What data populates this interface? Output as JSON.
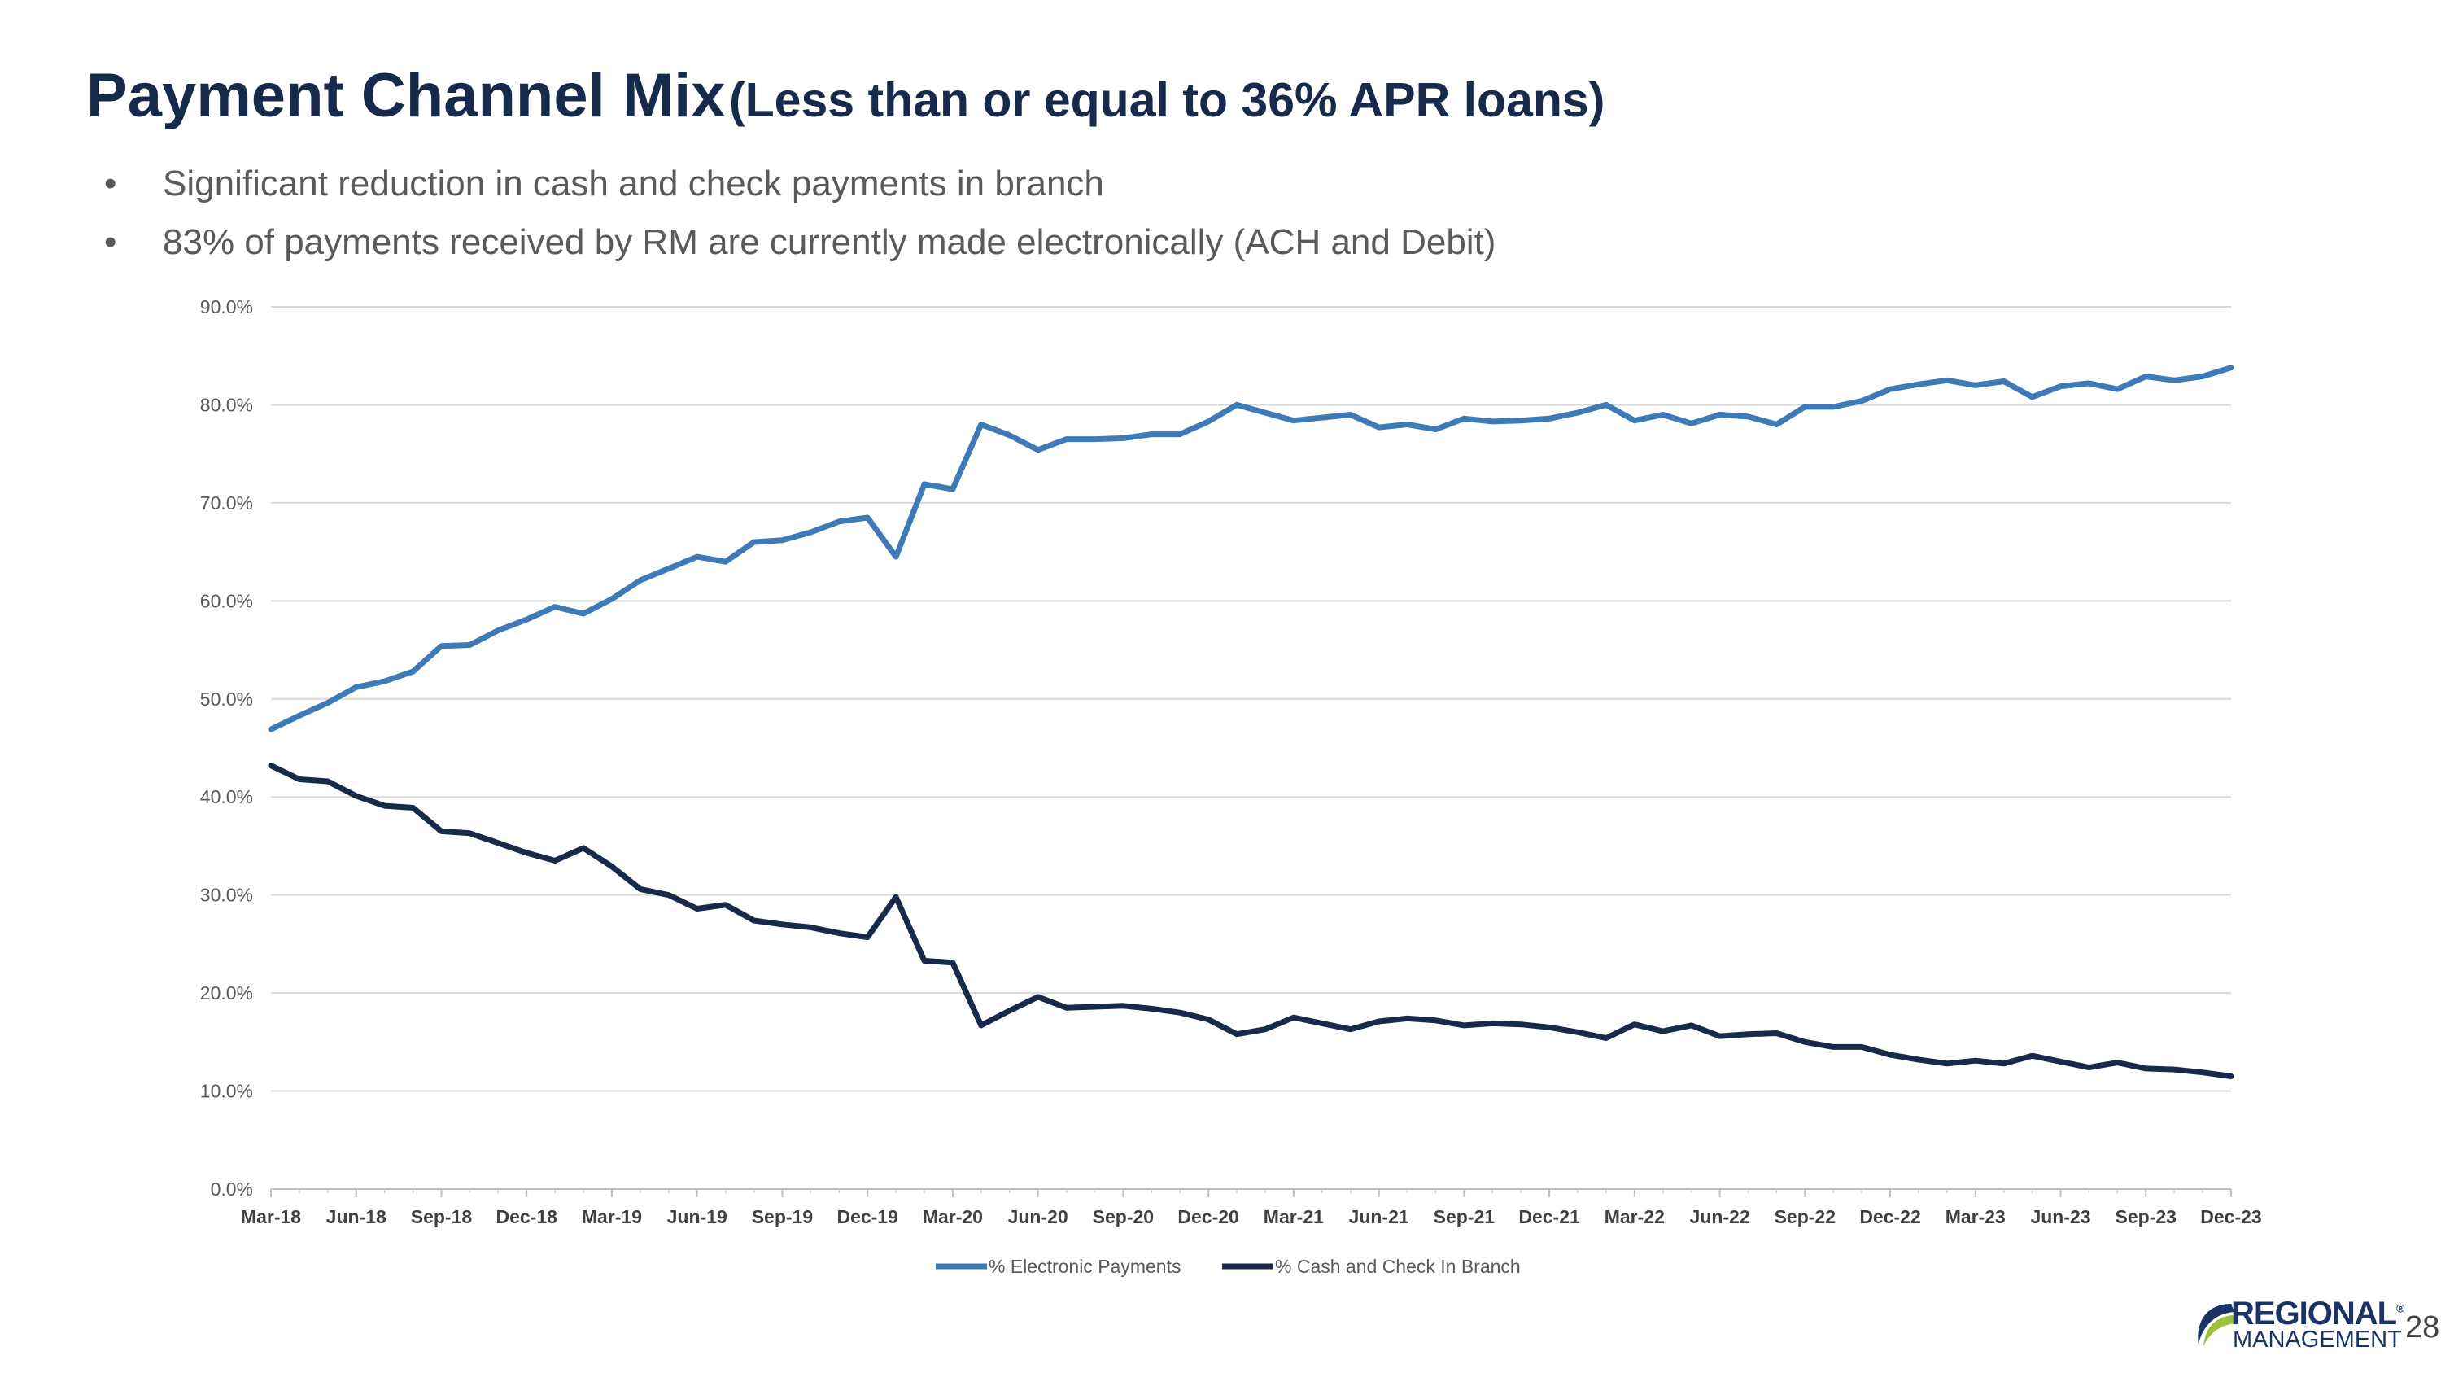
{
  "slide": {
    "title_main": "Payment Channel Mix",
    "title_sub": "(Less than or equal to 36% APR loans)",
    "bullets": [
      "Significant reduction in cash and check payments in branch",
      "83% of payments received by RM are currently made electronically (ACH and Debit)"
    ],
    "page_number": "28",
    "logo": {
      "line1": "REGIONAL",
      "reg_mark": "®",
      "line2": "MANAGEMENT"
    }
  },
  "chart_data": {
    "type": "line",
    "title": "",
    "xlabel": "",
    "ylabel": "",
    "ylim": [
      0,
      90
    ],
    "y_ticks": [
      "0.0%",
      "10.0%",
      "20.0%",
      "30.0%",
      "40.0%",
      "50.0%",
      "60.0%",
      "70.0%",
      "80.0%",
      "90.0%"
    ],
    "x_tick_labels": [
      "Mar-18",
      "Jun-18",
      "Sep-18",
      "Dec-18",
      "Mar-19",
      "Jun-19",
      "Sep-19",
      "Dec-19",
      "Mar-20",
      "Jun-20",
      "Sep-20",
      "Dec-20",
      "Mar-21",
      "Jun-21",
      "Sep-21",
      "Dec-21",
      "Mar-22",
      "Jun-22",
      "Sep-22",
      "Dec-22",
      "Mar-23",
      "Jun-23",
      "Sep-23",
      "Dec-23"
    ],
    "grid": true,
    "legend_position": "bottom",
    "series": [
      {
        "name": "% Electronic Payments",
        "color": "#3e79b8",
        "values": [
          46.9,
          48.3,
          49.6,
          51.2,
          51.8,
          52.8,
          55.4,
          55.5,
          57.0,
          58.1,
          59.4,
          58.7,
          60.2,
          62.1,
          63.3,
          64.5,
          64.0,
          66.0,
          66.2,
          67.0,
          68.1,
          68.5,
          64.5,
          71.9,
          71.4,
          78.0,
          76.9,
          75.4,
          76.5,
          76.5,
          76.6,
          77.0,
          77.0,
          78.3,
          80.0,
          79.2,
          78.4,
          78.7,
          79.0,
          77.7,
          78.0,
          77.5,
          78.6,
          78.3,
          78.4,
          78.6,
          79.2,
          80.0,
          78.4,
          79.0,
          78.1,
          79.0,
          78.8,
          78.0,
          79.8,
          79.8,
          80.4,
          81.6,
          82.1,
          82.5,
          82.0,
          82.4,
          80.8,
          81.9,
          82.2,
          81.6,
          82.9,
          82.5,
          82.9,
          83.8
        ]
      },
      {
        "name": "% Cash and Check In Branch",
        "color": "#172a4c",
        "values": [
          43.2,
          41.8,
          41.6,
          40.1,
          39.1,
          38.9,
          36.5,
          36.3,
          35.3,
          34.3,
          33.5,
          34.8,
          32.9,
          30.6,
          30.0,
          28.6,
          29.0,
          27.4,
          27.0,
          26.7,
          26.1,
          25.7,
          29.8,
          23.3,
          23.1,
          16.7,
          18.2,
          19.6,
          18.5,
          18.6,
          18.7,
          18.4,
          18.0,
          17.3,
          15.8,
          16.3,
          17.5,
          16.9,
          16.3,
          17.1,
          17.4,
          17.2,
          16.7,
          16.9,
          16.8,
          16.5,
          16.0,
          15.4,
          16.8,
          16.1,
          16.7,
          15.6,
          15.8,
          15.9,
          15.0,
          14.5,
          14.5,
          13.7,
          13.2,
          12.8,
          13.1,
          12.8,
          13.6,
          13.0,
          12.4,
          12.9,
          12.3,
          12.2,
          11.9,
          11.5
        ]
      }
    ]
  }
}
